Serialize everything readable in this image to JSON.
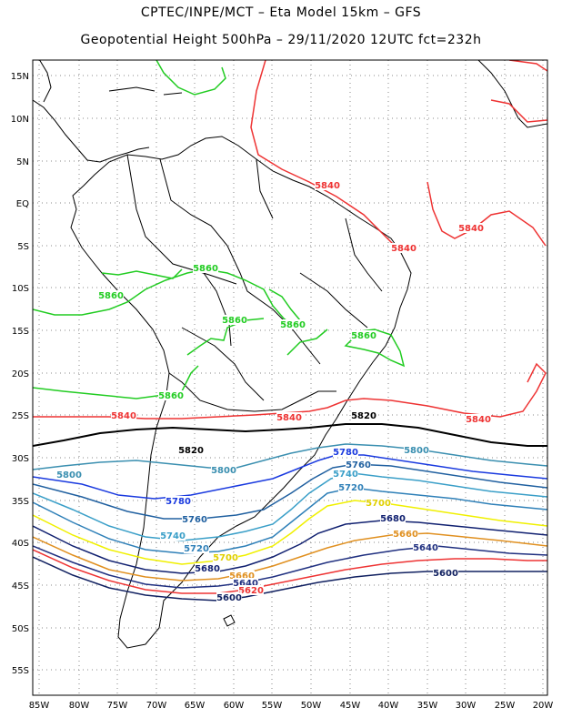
{
  "header": {
    "line1": "CPTEC/INPE/MCT –  Eta Model 15km – GFS",
    "line2": "Geopotential Height 500hPa – 29/11/2020 12UTC fct=232h"
  },
  "axes": {
    "lat_ticks": [
      "15N",
      "10N",
      "5N",
      "EQ",
      "5S",
      "10S",
      "15S",
      "20S",
      "25S",
      "30S",
      "35S",
      "40S",
      "45S",
      "50S",
      "55S"
    ],
    "lon_ticks": [
      "85W",
      "80W",
      "75W",
      "70W",
      "65W",
      "60W",
      "55W",
      "50W",
      "45W",
      "40W",
      "35W",
      "30W",
      "25W",
      "20W"
    ],
    "grid": true,
    "lon_range": [
      -86,
      -20
    ],
    "lat_range": [
      -58,
      16
    ]
  },
  "contour_colors": {
    "5860": "#22cc22",
    "5840": "#ee3333",
    "5820": "#000000",
    "5800": "#3a8fb0",
    "5780": "#1a3adf",
    "5760": "#2060a0",
    "5740": "#3a9fc8",
    "5720": "#2f80b8",
    "5700": "#f0f000",
    "5680": "#102070",
    "5660": "#e09020",
    "5640": "#203080",
    "5620": "#ee3333",
    "5600": "#102060"
  },
  "contour_labels": [
    {
      "text": "5860",
      "color": "5860"
    },
    {
      "text": "5860",
      "color": "5860"
    },
    {
      "text": "5860",
      "color": "5860"
    },
    {
      "text": "5860",
      "color": "5860"
    },
    {
      "text": "5860",
      "color": "5860"
    },
    {
      "text": "5860",
      "color": "5860"
    },
    {
      "text": "5840",
      "color": "5840"
    },
    {
      "text": "5840",
      "color": "5840"
    },
    {
      "text": "5840",
      "color": "5840"
    },
    {
      "text": "5840",
      "color": "5840"
    },
    {
      "text": "5840",
      "color": "5840"
    },
    {
      "text": "5840",
      "color": "5840"
    },
    {
      "text": "5820",
      "color": "5820"
    },
    {
      "text": "5820",
      "color": "5820"
    },
    {
      "text": "5800",
      "color": "5800"
    },
    {
      "text": "5800",
      "color": "5800"
    },
    {
      "text": "5800",
      "color": "5800"
    },
    {
      "text": "5780",
      "color": "5780"
    },
    {
      "text": "5780",
      "color": "5780"
    },
    {
      "text": "5760",
      "color": "5760"
    },
    {
      "text": "5760",
      "color": "5760"
    },
    {
      "text": "5740",
      "color": "5740"
    },
    {
      "text": "5740",
      "color": "5740"
    },
    {
      "text": "5720",
      "color": "5720"
    },
    {
      "text": "5720",
      "color": "5720"
    },
    {
      "text": "5700",
      "color": "5700"
    },
    {
      "text": "5700",
      "color": "5700"
    },
    {
      "text": "5680",
      "color": "5680"
    },
    {
      "text": "5680",
      "color": "5680"
    },
    {
      "text": "5660",
      "color": "5660"
    },
    {
      "text": "5660",
      "color": "5660"
    },
    {
      "text": "5640",
      "color": "5640"
    },
    {
      "text": "5640",
      "color": "5640"
    },
    {
      "text": "5620",
      "color": "5620"
    },
    {
      "text": "5600",
      "color": "5600"
    },
    {
      "text": "5600",
      "color": "5600"
    }
  ]
}
